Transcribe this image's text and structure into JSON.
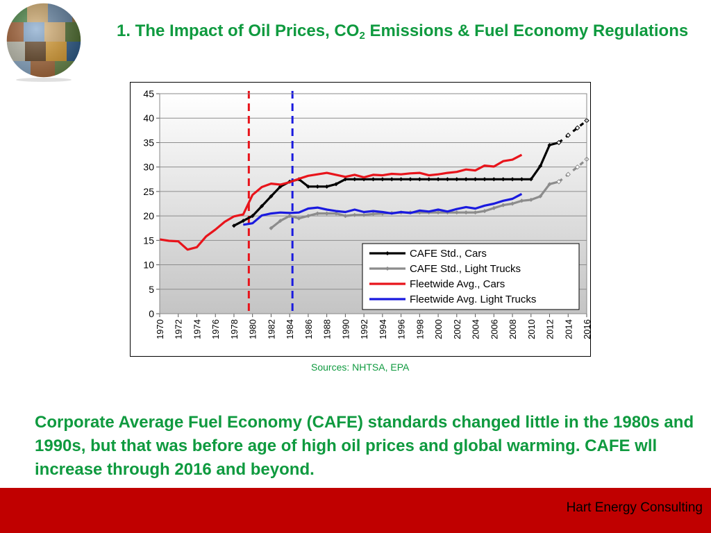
{
  "slide": {
    "title_prefix": "1. The Impact of Oil Prices, CO",
    "title_sub": "2",
    "title_suffix": " Emissions & Fuel Economy Regulations",
    "sources": "Sources: NHTSA, EPA",
    "body": "Corporate Average Fuel Economy (CAFE) standards changed little in the 1980s and 1990s, but that was before age of high oil prices and global warming. CAFE wll increase through 2016 and beyond.",
    "footer": "Hart Energy Consulting",
    "logo_icon": "globe-collage-icon"
  },
  "chart_data": {
    "type": "line",
    "title": "",
    "xlabel": "",
    "ylabel": "",
    "xlim": [
      1970,
      2016
    ],
    "ylim": [
      0,
      45
    ],
    "yticks": [
      0,
      5,
      10,
      15,
      20,
      25,
      30,
      35,
      40,
      45
    ],
    "xticks": [
      1970,
      1972,
      1974,
      1976,
      1978,
      1980,
      1982,
      1984,
      1986,
      1988,
      1990,
      1992,
      1994,
      1996,
      1998,
      2000,
      2002,
      2004,
      2006,
      2008,
      2010,
      2012,
      2014,
      2016
    ],
    "grid": true,
    "legend_position": "bottom-right",
    "vertical_markers": [
      {
        "x": 1979.6,
        "color": "#e8141b",
        "style": "dashed"
      },
      {
        "x": 1984.3,
        "color": "#1a1adf",
        "style": "dashed"
      }
    ],
    "series": [
      {
        "name": "CAFE Std., Cars",
        "color": "#000000",
        "marker": "diamond",
        "x": [
          1978,
          1979,
          1980,
          1981,
          1982,
          1983,
          1984,
          1985,
          1986,
          1987,
          1988,
          1989,
          1990,
          1991,
          1992,
          1993,
          1994,
          1995,
          1996,
          1997,
          1998,
          1999,
          2000,
          2001,
          2002,
          2003,
          2004,
          2005,
          2006,
          2007,
          2008,
          2009,
          2010,
          2011,
          2012,
          2013
        ],
        "y": [
          18.0,
          19.0,
          20.0,
          22.0,
          24.0,
          26.0,
          27.0,
          27.5,
          26.0,
          26.0,
          26.0,
          26.5,
          27.5,
          27.5,
          27.5,
          27.5,
          27.5,
          27.5,
          27.5,
          27.5,
          27.5,
          27.5,
          27.5,
          27.5,
          27.5,
          27.5,
          27.5,
          27.5,
          27.5,
          27.5,
          27.5,
          27.5,
          27.5,
          30.2,
          34.5,
          35.0
        ],
        "projected_x": [
          2013,
          2014,
          2015,
          2016
        ],
        "projected_y": [
          35.0,
          36.5,
          38.0,
          39.5
        ]
      },
      {
        "name": "CAFE Std., Light Trucks",
        "color": "#8c8c8c",
        "marker": "diamond",
        "x": [
          1982,
          1983,
          1984,
          1985,
          1986,
          1987,
          1988,
          1989,
          1990,
          1991,
          1992,
          1993,
          1994,
          1995,
          1996,
          1997,
          1998,
          1999,
          2000,
          2001,
          2002,
          2003,
          2004,
          2005,
          2006,
          2007,
          2008,
          2009,
          2010,
          2011,
          2012,
          2013
        ],
        "y": [
          17.5,
          19.0,
          20.0,
          19.5,
          20.0,
          20.5,
          20.5,
          20.5,
          20.0,
          20.2,
          20.2,
          20.4,
          20.5,
          20.6,
          20.7,
          20.7,
          20.7,
          20.7,
          20.7,
          20.7,
          20.7,
          20.7,
          20.7,
          21.0,
          21.6,
          22.2,
          22.5,
          23.1,
          23.3,
          24.0,
          26.5,
          27.0
        ],
        "projected_x": [
          2013,
          2014,
          2015,
          2016
        ],
        "projected_y": [
          27.0,
          28.5,
          30.0,
          31.6
        ]
      },
      {
        "name": "Fleetwide Avg., Cars",
        "color": "#e8141b",
        "marker": "none",
        "x": [
          1970,
          1971,
          1972,
          1973,
          1974,
          1975,
          1976,
          1977,
          1978,
          1979,
          1980,
          1981,
          1982,
          1983,
          1984,
          1985,
          1986,
          1987,
          1988,
          1989,
          1990,
          1991,
          1992,
          1993,
          1994,
          1995,
          1996,
          1997,
          1998,
          1999,
          2000,
          2001,
          2002,
          2003,
          2004,
          2005,
          2006,
          2007,
          2008,
          2009
        ],
        "y": [
          15.2,
          14.9,
          14.8,
          13.1,
          13.6,
          15.8,
          17.2,
          18.8,
          19.9,
          20.3,
          24.3,
          25.9,
          26.6,
          26.4,
          26.9,
          27.6,
          28.2,
          28.5,
          28.8,
          28.4,
          28.0,
          28.4,
          27.9,
          28.4,
          28.3,
          28.6,
          28.5,
          28.7,
          28.8,
          28.3,
          28.5,
          28.8,
          29.0,
          29.5,
          29.3,
          30.3,
          30.1,
          31.2,
          31.5,
          32.5
        ]
      },
      {
        "name": "Fleetwide Avg. Light Trucks",
        "color": "#1a1adf",
        "marker": "none",
        "x": [
          1979,
          1980,
          1981,
          1982,
          1983,
          1984,
          1985,
          1986,
          1987,
          1988,
          1989,
          1990,
          1991,
          1992,
          1993,
          1994,
          1995,
          1996,
          1997,
          1998,
          1999,
          2000,
          2001,
          2002,
          2003,
          2004,
          2005,
          2006,
          2007,
          2008,
          2009
        ],
        "y": [
          18.2,
          18.5,
          20.1,
          20.5,
          20.7,
          20.6,
          20.7,
          21.5,
          21.7,
          21.3,
          21.0,
          20.8,
          21.3,
          20.8,
          21.0,
          20.8,
          20.5,
          20.8,
          20.6,
          21.1,
          20.9,
          21.3,
          20.9,
          21.4,
          21.8,
          21.5,
          22.1,
          22.5,
          23.1,
          23.5,
          24.5
        ]
      }
    ]
  }
}
